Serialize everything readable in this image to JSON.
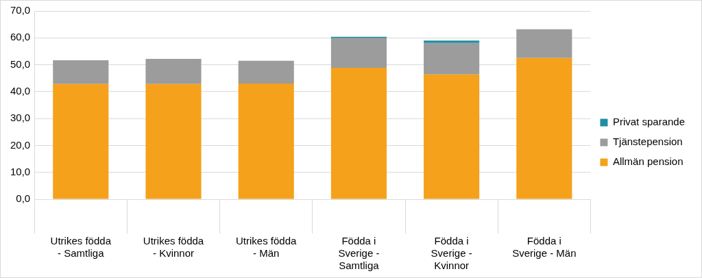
{
  "chart_data": {
    "type": "bar",
    "stacked": true,
    "grid": true,
    "legend": "right",
    "categories": [
      "Utrikes födda - Samtliga",
      "Utrikes födda - Kvinnor",
      "Utrikes födda - Män",
      "Födda i Sverige - Samtliga",
      "Födda i Sverige - Kvinnor",
      "Födda i Sverige - Män"
    ],
    "series": [
      {
        "name": "Allmän pension",
        "color": "#f5a11c",
        "values": [
          42.8,
          42.8,
          43.0,
          48.9,
          46.4,
          52.5
        ]
      },
      {
        "name": "Tjänstepension",
        "color": "#9c9c9c",
        "values": [
          8.9,
          9.4,
          8.5,
          11.0,
          11.7,
          10.7
        ]
      },
      {
        "name": "Privat sparande",
        "color": "#1f8ea3",
        "values": [
          0,
          0,
          0,
          0.5,
          0.9,
          0
        ]
      }
    ],
    "ylim": [
      0,
      70
    ],
    "yticks": [
      {
        "value": 0,
        "label": "0,0"
      },
      {
        "value": 10,
        "label": "10,0"
      },
      {
        "value": 20,
        "label": "20,0"
      },
      {
        "value": 30,
        "label": "30,0"
      },
      {
        "value": 40,
        "label": "40,0"
      },
      {
        "value": 50,
        "label": "50,0"
      },
      {
        "value": 60,
        "label": "60,0"
      },
      {
        "value": 70,
        "label": "70,0"
      }
    ]
  }
}
